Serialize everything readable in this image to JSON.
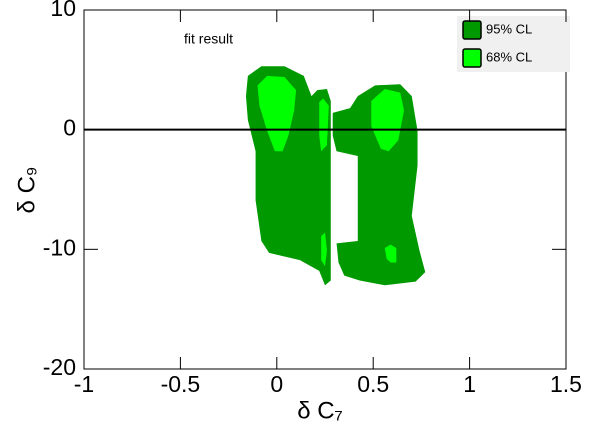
{
  "chart_data": {
    "type": "contour",
    "x_label": "δ C₇",
    "y_label": "δ C₉",
    "annotation": "fit result",
    "xlim": [
      -1,
      1.5
    ],
    "xticks": [
      -1,
      -0.5,
      0,
      0.5,
      1,
      1.5
    ],
    "ylim": [
      -20,
      10
    ],
    "yticks": [
      -20,
      -10,
      0,
      10
    ],
    "hline": 0,
    "series": [
      {
        "name": "95% CL",
        "color": "#009900",
        "regions": [
          {
            "x": [
              -0.15,
              -0.08,
              0.04,
              0.14,
              0.18,
              0.21,
              0.26,
              0.28,
              0.28,
              0.25,
              0.22,
              0.12,
              -0.04,
              -0.08,
              -0.11,
              -0.11,
              -0.15,
              -0.16
            ],
            "y": [
              4.5,
              5.3,
              5.3,
              4.5,
              2.8,
              3.3,
              3.4,
              2.4,
              -12.6,
              -13.0,
              -11.8,
              -10.9,
              -10.3,
              -9.3,
              -5.9,
              -1.8,
              0.8,
              2.8
            ]
          },
          {
            "x": [
              0.29,
              0.38,
              0.42,
              0.51,
              0.64,
              0.7,
              0.73,
              0.73,
              0.7,
              0.74,
              0.77,
              0.72,
              0.56,
              0.43,
              0.35,
              0.32,
              0.31,
              0.42,
              0.42,
              0.31,
              0.29
            ],
            "y": [
              1.4,
              1.8,
              2.8,
              3.7,
              3.8,
              2.8,
              -0.1,
              -3.0,
              -7.2,
              -10.1,
              -11.9,
              -12.7,
              -13.0,
              -12.6,
              -12.2,
              -11.1,
              -9.5,
              -9.3,
              -2.2,
              -1.8,
              -0.5
            ]
          }
        ]
      },
      {
        "name": "68% CL",
        "color": "#00ff00",
        "regions": [
          {
            "x": [
              -0.1,
              -0.05,
              0.04,
              0.1,
              0.09,
              0.06,
              0.03,
              -0.01,
              -0.05,
              -0.09
            ],
            "y": [
              3.7,
              4.5,
              4.4,
              3.3,
              1.6,
              -0.5,
              -1.8,
              -1.8,
              -0.1,
              2.0
            ]
          },
          {
            "x": [
              0.22,
              0.24,
              0.27,
              0.26,
              0.23,
              0.22
            ],
            "y": [
              2.3,
              2.6,
              2.0,
              -1.3,
              -1.8,
              -0.5
            ]
          },
          {
            "x": [
              0.23,
              0.25,
              0.26,
              0.25,
              0.23
            ],
            "y": [
              -8.9,
              -8.6,
              -10.1,
              -11.4,
              -10.9
            ]
          },
          {
            "x": [
              0.49,
              0.56,
              0.64,
              0.66,
              0.63,
              0.58,
              0.54,
              0.49
            ],
            "y": [
              2.4,
              3.4,
              3.1,
              1.6,
              -0.9,
              -1.8,
              -1.6,
              0.3
            ]
          },
          {
            "x": [
              0.56,
              0.59,
              0.62,
              0.62,
              0.59,
              0.57
            ],
            "y": [
              -9.9,
              -9.6,
              -9.9,
              -11.1,
              -11.1,
              -10.8
            ]
          }
        ]
      }
    ]
  }
}
